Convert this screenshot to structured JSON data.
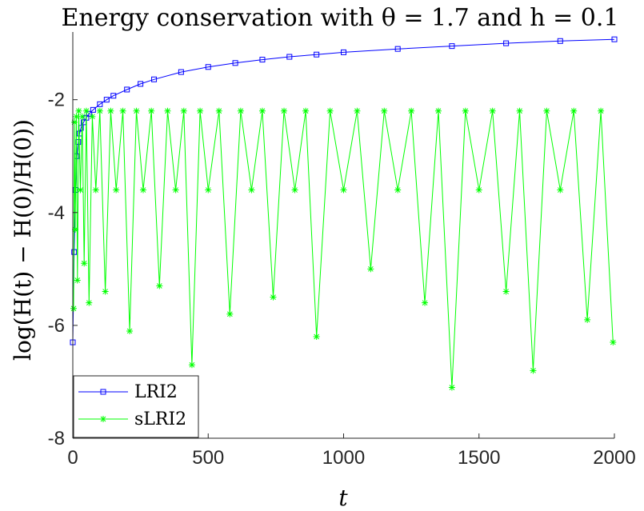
{
  "chart_data": {
    "type": "line",
    "title": "Energy conservation with θ = 1.7 and h = 0.1",
    "xlabel": "t",
    "ylabel": "log(H(t) − H(0)/H(0))",
    "xlim": [
      0,
      2000
    ],
    "ylim": [
      -8,
      -0.8
    ],
    "xticks": [
      0,
      500,
      1000,
      1500,
      2000
    ],
    "xtick_labels": [
      "0",
      "500",
      "1000",
      "1500",
      "2000"
    ],
    "yticks": [
      -8,
      -6,
      -4,
      -2
    ],
    "ytick_labels": [
      "-8",
      "-6",
      "-4",
      "-2"
    ],
    "grid": false,
    "legend_position": "bottom-left",
    "series": [
      {
        "name": "LRI2",
        "color": "#0000ff",
        "marker": "square",
        "x": [
          0,
          5,
          10,
          15,
          20,
          25,
          30,
          40,
          50,
          60,
          75,
          100,
          125,
          150,
          200,
          250,
          300,
          400,
          500,
          600,
          700,
          800,
          900,
          1000,
          1200,
          1400,
          1600,
          1800,
          2000
        ],
        "y": [
          -6.3,
          -4.7,
          -3.6,
          -3.0,
          -2.75,
          -2.6,
          -2.5,
          -2.4,
          -2.32,
          -2.25,
          -2.18,
          -2.08,
          -2.0,
          -1.93,
          -1.82,
          -1.72,
          -1.64,
          -1.51,
          -1.42,
          -1.35,
          -1.29,
          -1.24,
          -1.2,
          -1.16,
          -1.1,
          -1.05,
          -1.0,
          -0.96,
          -0.93
        ]
      },
      {
        "name": "sLRI2",
        "color": "#00ff00",
        "marker": "asterisk",
        "x": [
          3,
          6,
          9,
          13,
          17,
          22,
          28,
          35,
          42,
          50,
          60,
          72,
          85,
          100,
          120,
          140,
          160,
          185,
          210,
          235,
          260,
          290,
          320,
          350,
          380,
          410,
          440,
          470,
          500,
          540,
          580,
          620,
          660,
          700,
          740,
          780,
          820,
          860,
          900,
          950,
          1000,
          1050,
          1100,
          1150,
          1200,
          1250,
          1300,
          1350,
          1400,
          1450,
          1500,
          1550,
          1600,
          1650,
          1700,
          1750,
          1800,
          1850,
          1900,
          1950,
          1995
        ],
        "y": [
          -5.7,
          -2.4,
          -4.3,
          -2.3,
          -5.2,
          -2.2,
          -3.6,
          -2.3,
          -4.9,
          -2.2,
          -5.6,
          -2.3,
          -3.6,
          -2.2,
          -5.4,
          -2.2,
          -3.6,
          -2.2,
          -6.1,
          -2.2,
          -3.6,
          -2.2,
          -5.3,
          -2.2,
          -3.6,
          -2.2,
          -6.7,
          -2.2,
          -3.6,
          -2.2,
          -5.8,
          -2.2,
          -3.6,
          -2.2,
          -5.5,
          -2.2,
          -3.6,
          -2.2,
          -6.2,
          -2.2,
          -3.6,
          -2.2,
          -5.0,
          -2.2,
          -3.6,
          -2.2,
          -5.6,
          -2.2,
          -7.1,
          -2.2,
          -3.6,
          -2.2,
          -5.4,
          -2.2,
          -6.8,
          -2.2,
          -3.6,
          -2.2,
          -5.9,
          -2.2,
          -6.3
        ]
      }
    ]
  }
}
